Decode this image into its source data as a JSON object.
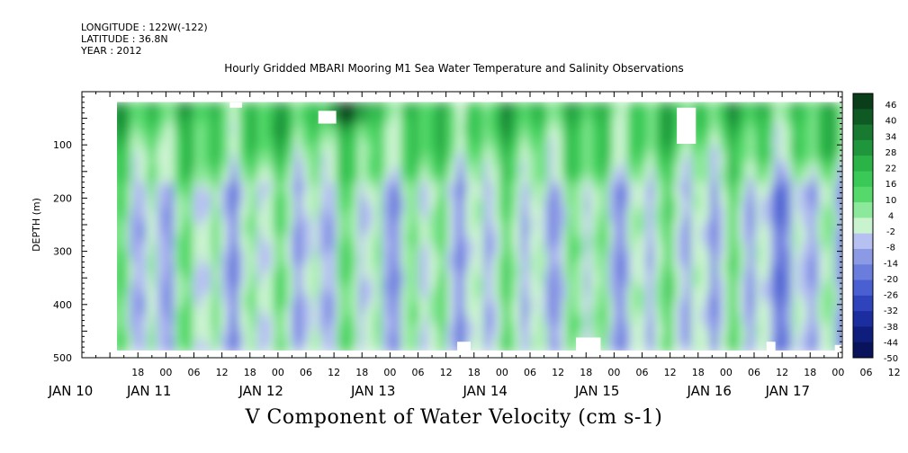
{
  "header": {
    "longitude": "LONGITUDE : 122W(-122)",
    "latitude": "LATITUDE : 36.8N",
    "year": "YEAR : 2012",
    "title": "Hourly Gridded MBARI Mooring M1 Sea Water Temperature and Salinity Observations"
  },
  "chart_data": {
    "type": "heatmap",
    "title": "Hourly Gridded MBARI Mooring M1 Sea Water Temperature and Salinity Observations",
    "xlabel": "V Component of Water Velocity (cm s-1)",
    "ylabel": "DEPTH (m)",
    "x_hour_ticks": [
      "18",
      "00",
      "06",
      "12",
      "18",
      "00",
      "06",
      "12",
      "18",
      "00",
      "06",
      "12",
      "18",
      "00",
      "06",
      "12",
      "18",
      "00",
      "06",
      "12",
      "18",
      "00",
      "06",
      "12",
      "18",
      "00",
      "06",
      "12",
      "18",
      "00",
      "06"
    ],
    "x_day_labels": [
      "JAN 10",
      "JAN 11",
      "JAN 12",
      "JAN 13",
      "JAN 14",
      "JAN 15",
      "JAN 16",
      "JAN 17"
    ],
    "y_ticks": [
      100,
      200,
      300,
      400,
      500
    ],
    "ylim": [
      500,
      0
    ],
    "colorbar": {
      "levels": [
        "46",
        "40",
        "34",
        "28",
        "22",
        "16",
        "10",
        "4",
        "-2",
        "-8",
        "-14",
        "-20",
        "-26",
        "-32",
        "-38",
        "-44",
        "-50"
      ],
      "colors": [
        "#0a3d1a",
        "#0f5a24",
        "#177a30",
        "#1f963b",
        "#2bb347",
        "#3ac956",
        "#55d96b",
        "#8ce89a",
        "#c9f3cf",
        "#b6c1f1",
        "#8c9ae6",
        "#6b7ddc",
        "#4a5fd2",
        "#2f43bd",
        "#1c2d9f",
        "#0f1e7c",
        "#08135c"
      ],
      "range": [
        -50,
        46
      ]
    },
    "data_extent_x_days": [
      0.5,
      7.5
    ],
    "data_extent_depth": [
      20,
      490
    ],
    "summary": {
      "surface_band_approx": "16 to 46 (green, strongest near JAN 12 18h at ~40 m)",
      "deep_layer_approx": "-14 to 10 (alternating blue/green bands)"
    }
  }
}
